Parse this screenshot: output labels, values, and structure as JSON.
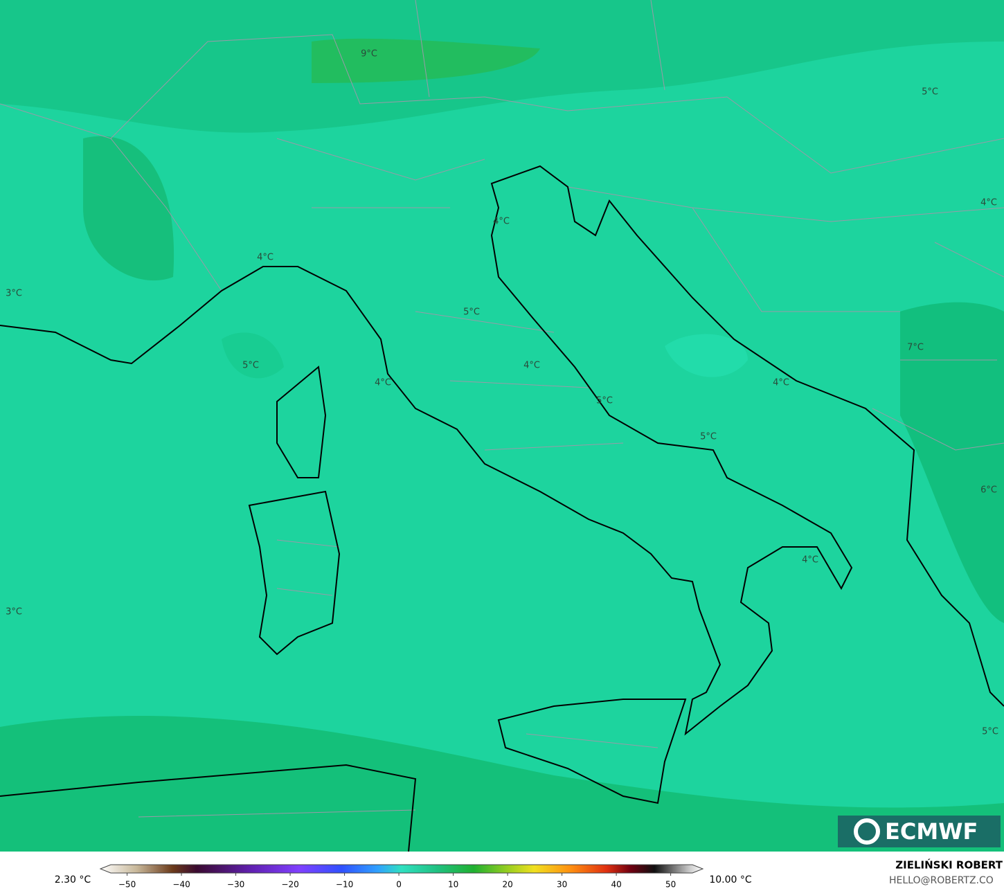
{
  "map": {
    "labels": [
      "9°C",
      "5°C",
      "4°C",
      "4°C",
      "4°C",
      "3°C",
      "5°C",
      "7°C",
      "5°C",
      "4°C",
      "4°C",
      "4°C",
      "5°C",
      "5°C",
      "6°C",
      "4°C",
      "3°C",
      "5°C"
    ]
  },
  "logo": "ECMWF",
  "colorbar": {
    "min_label": "2.30 °C",
    "max_label": "10.00 °C",
    "lim": [
      -53,
      54
    ],
    "ticks": [
      {
        "value": -50,
        "label": "−50"
      },
      {
        "value": -40,
        "label": "−40"
      },
      {
        "value": -30,
        "label": "−30"
      },
      {
        "value": -20,
        "label": "−20"
      },
      {
        "value": -10,
        "label": "−10"
      },
      0,
      10,
      20,
      30,
      40,
      50
    ]
  },
  "credit": {
    "name": "ZIELIŃSKI ROBERT",
    "email": "HELLO@ROBERTZ.CO"
  }
}
